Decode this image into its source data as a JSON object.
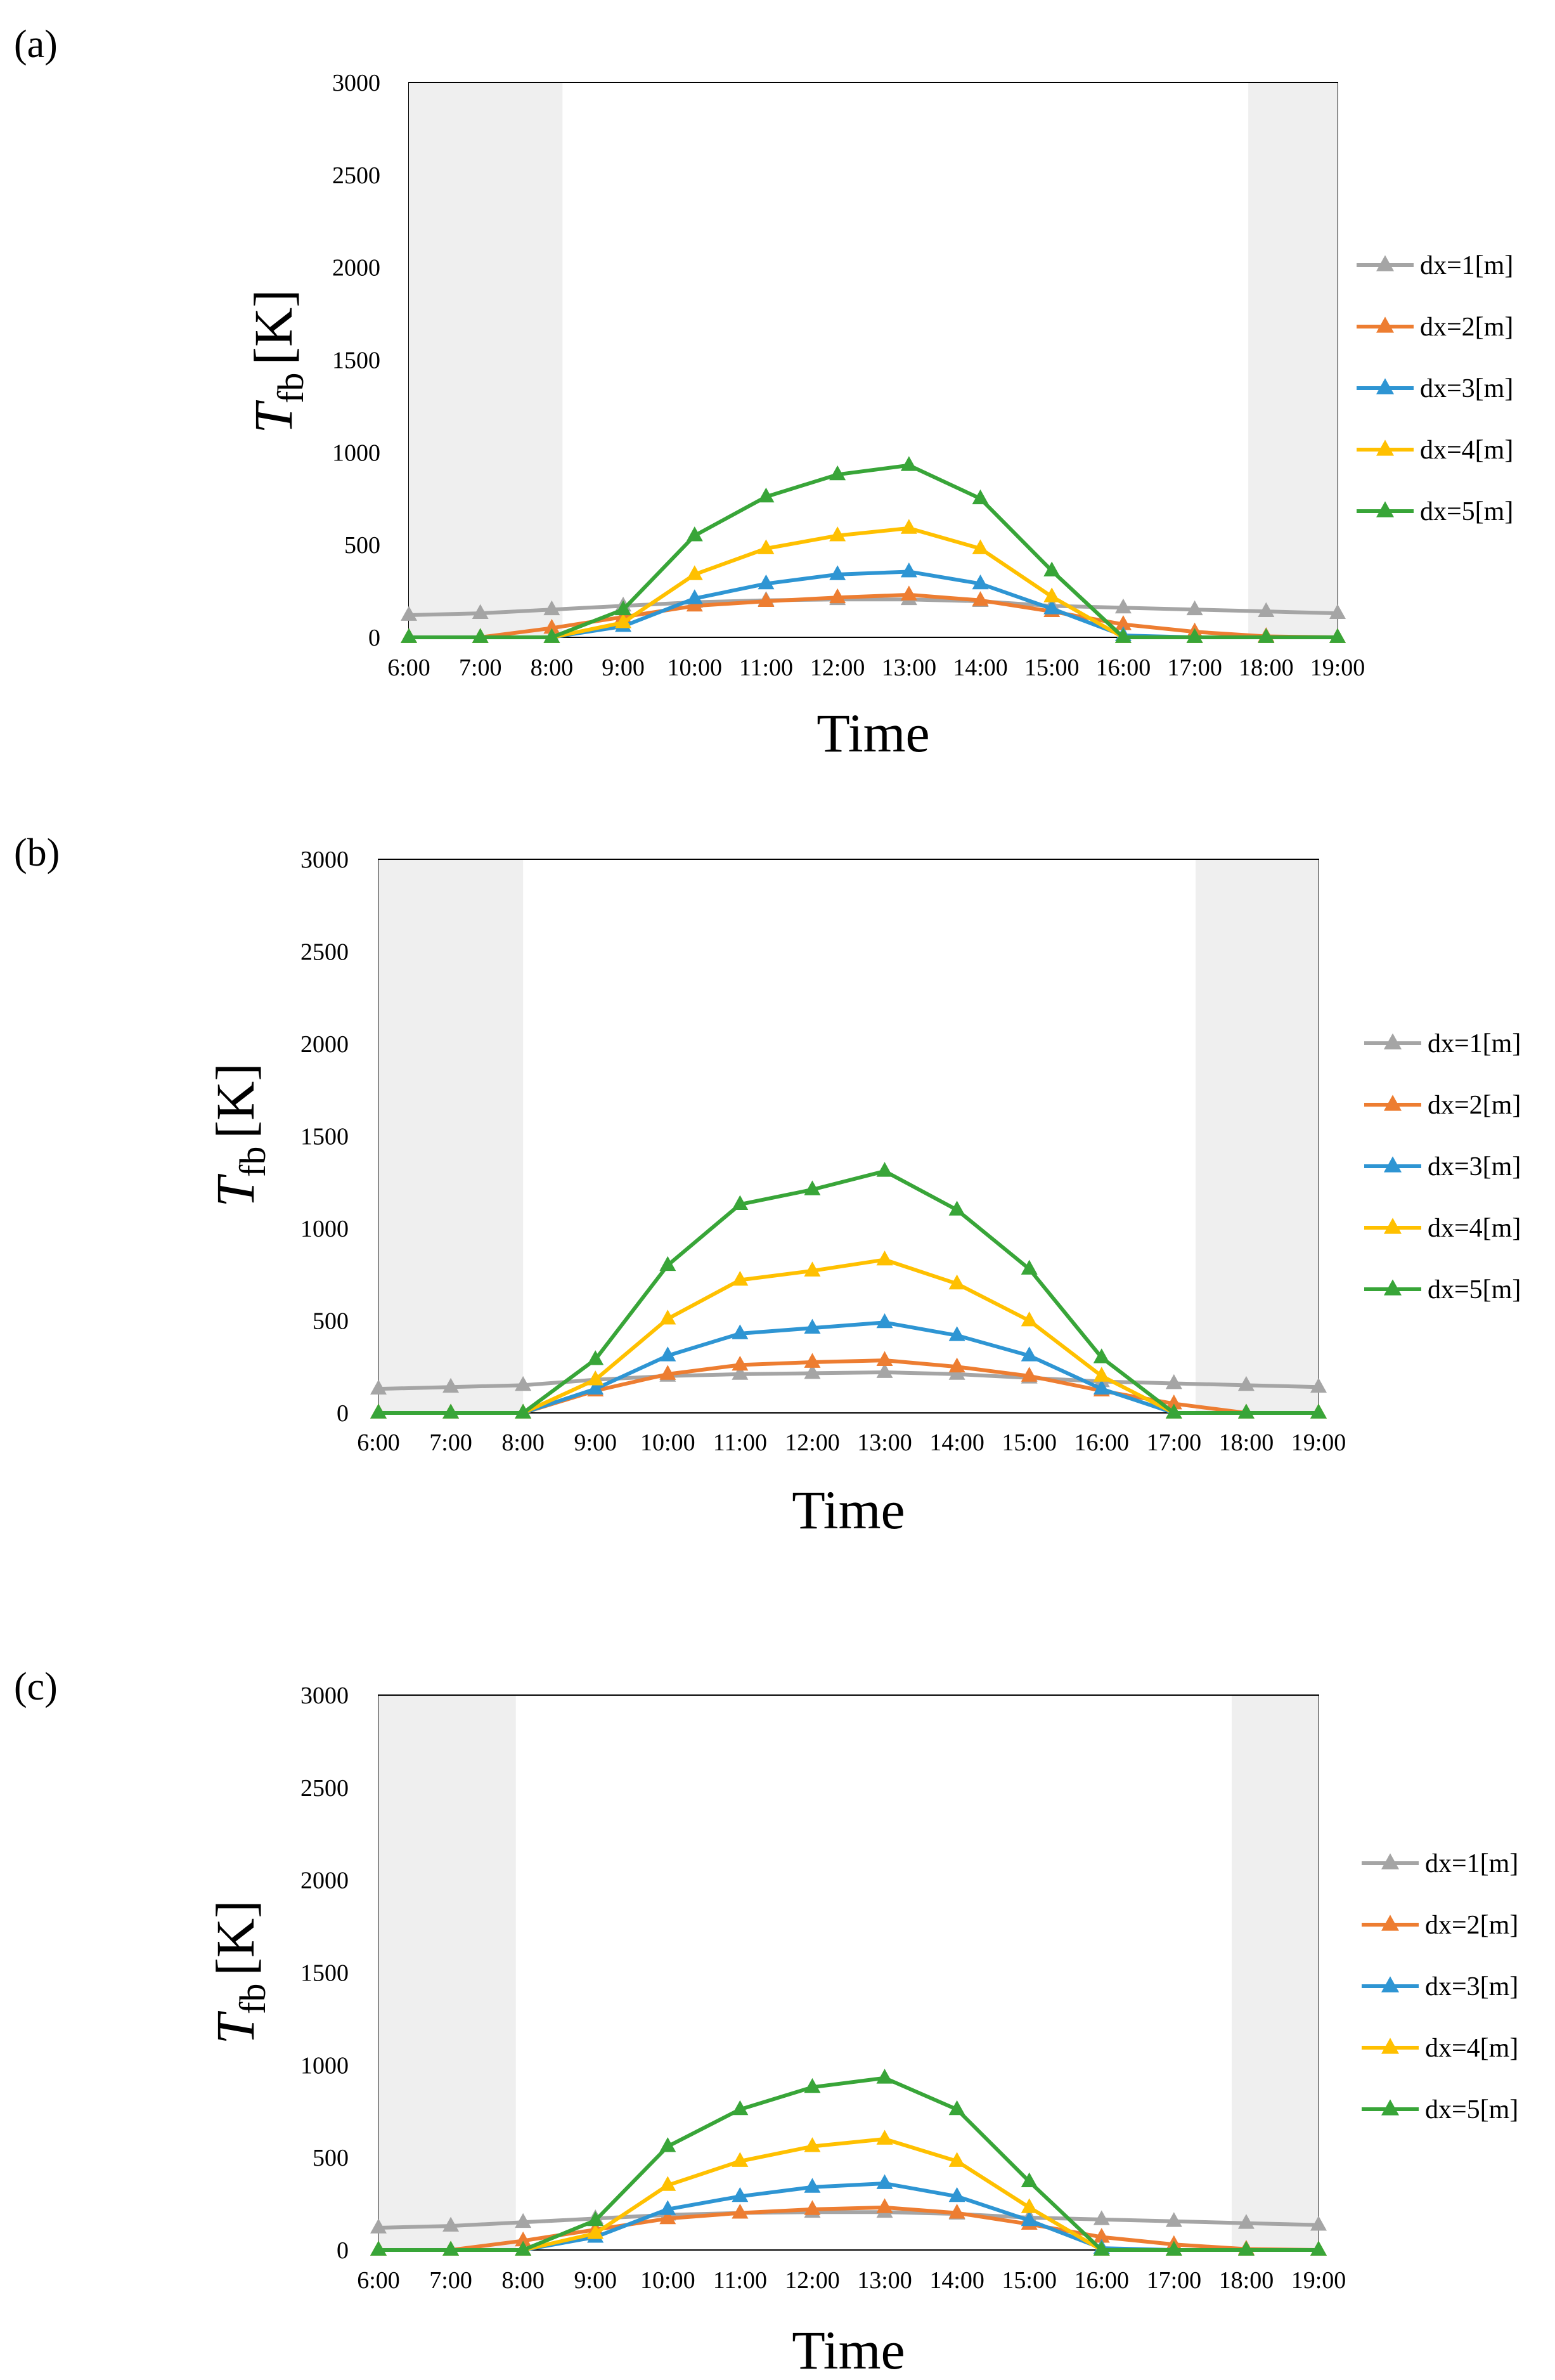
{
  "figure": {
    "panels": [
      {
        "label": "(a)",
        "chart_data": {
          "type": "line",
          "xlabel": "Time",
          "ylabel_main": "T",
          "ylabel_sub": "fb",
          "ylabel_unit": "[K]",
          "ylim": [
            0,
            3000
          ],
          "yticks": [
            "0",
            "500",
            "1000",
            "1500",
            "2000",
            "2500",
            "3000"
          ],
          "categories": [
            "6:00",
            "7:00",
            "8:00",
            "9:00",
            "10:00",
            "11:00",
            "12:00",
            "13:00",
            "14:00",
            "15:00",
            "16:00",
            "17:00",
            "18:00",
            "19:00"
          ],
          "shaded_regions": [
            [
              "6:00",
              "8:15"
            ],
            "17:40-19:00"
          ],
          "legend_position": "right",
          "grid": false,
          "series": [
            {
              "name": "dx=1[m]",
              "color": "#a5a5a5",
              "values": [
                120,
                130,
                150,
                170,
                190,
                200,
                205,
                205,
                195,
                170,
                160,
                150,
                140,
                130
              ]
            },
            {
              "name": "dx=2[m]",
              "color": "#ed7d31",
              "values": [
                0,
                0,
                50,
                110,
                170,
                195,
                215,
                230,
                200,
                140,
                70,
                30,
                5,
                0
              ]
            },
            {
              "name": "dx=3[m]",
              "color": "#2e95d3",
              "values": [
                0,
                0,
                0,
                60,
                210,
                290,
                340,
                355,
                290,
                155,
                10,
                0,
                0,
                0
              ]
            },
            {
              "name": "dx=4[m]",
              "color": "#ffc000",
              "values": [
                0,
                0,
                0,
                80,
                340,
                480,
                550,
                590,
                480,
                220,
                0,
                0,
                0,
                0
              ]
            },
            {
              "name": "dx=5[m]",
              "color": "#38a538",
              "values": [
                0,
                0,
                0,
                150,
                550,
                760,
                880,
                930,
                750,
                360,
                0,
                0,
                0,
                0
              ]
            }
          ]
        }
      },
      {
        "label": "(b)",
        "chart_data": {
          "type": "line",
          "xlabel": "Time",
          "ylabel_main": "T",
          "ylabel_sub": "fb",
          "ylabel_unit": "[K]",
          "ylim": [
            0,
            3000
          ],
          "yticks": [
            "0",
            "500",
            "1000",
            "1500",
            "2000",
            "2500",
            "3000"
          ],
          "categories": [
            "6:00",
            "7:00",
            "8:00",
            "9:00",
            "10:00",
            "11:00",
            "12:00",
            "13:00",
            "14:00",
            "15:00",
            "16:00",
            "17:00",
            "18:00",
            "19:00"
          ],
          "legend_position": "right",
          "grid": false,
          "series": [
            {
              "name": "dx=1[m]",
              "color": "#a5a5a5",
              "values": [
                130,
                140,
                150,
                180,
                200,
                210,
                215,
                220,
                210,
                190,
                170,
                160,
                150,
                140
              ]
            },
            {
              "name": "dx=2[m]",
              "color": "#ed7d31",
              "values": [
                0,
                0,
                0,
                120,
                210,
                260,
                275,
                285,
                250,
                200,
                120,
                50,
                0,
                0
              ]
            },
            {
              "name": "dx=3[m]",
              "color": "#2e95d3",
              "values": [
                0,
                0,
                0,
                130,
                310,
                430,
                460,
                490,
                420,
                310,
                130,
                0,
                0,
                0
              ]
            },
            {
              "name": "dx=4[m]",
              "color": "#ffc000",
              "values": [
                0,
                0,
                0,
                180,
                510,
                720,
                770,
                830,
                700,
                500,
                200,
                0,
                0,
                0
              ]
            },
            {
              "name": "dx=5[m]",
              "color": "#38a538",
              "values": [
                0,
                0,
                0,
                290,
                800,
                1130,
                1210,
                1310,
                1100,
                780,
                300,
                0,
                0,
                0
              ]
            }
          ]
        }
      },
      {
        "label": "(c)",
        "chart_data": {
          "type": "line",
          "xlabel": "Time",
          "ylabel_main": "T",
          "ylabel_sub": "fb",
          "ylabel_unit": "[K]",
          "ylim": [
            0,
            3000
          ],
          "yticks": [
            "0",
            "500",
            "1000",
            "1500",
            "2000",
            "2500",
            "3000"
          ],
          "categories": [
            "6:00",
            "7:00",
            "8:00",
            "9:00",
            "10:00",
            "11:00",
            "12:00",
            "13:00",
            "14:00",
            "15:00",
            "16:00",
            "17:00",
            "18:00",
            "19:00"
          ],
          "legend_position": "right",
          "grid": false,
          "series": [
            {
              "name": "dx=1[m]",
              "color": "#a5a5a5",
              "values": [
                120,
                130,
                150,
                170,
                190,
                200,
                205,
                205,
                195,
                175,
                165,
                155,
                145,
                135
              ]
            },
            {
              "name": "dx=2[m]",
              "color": "#ed7d31",
              "values": [
                0,
                0,
                50,
                110,
                170,
                200,
                220,
                230,
                200,
                140,
                70,
                30,
                5,
                0
              ]
            },
            {
              "name": "dx=3[m]",
              "color": "#2e95d3",
              "values": [
                0,
                0,
                0,
                70,
                220,
                290,
                340,
                360,
                290,
                160,
                10,
                0,
                0,
                0
              ]
            },
            {
              "name": "dx=4[m]",
              "color": "#ffc000",
              "values": [
                0,
                0,
                0,
                90,
                350,
                480,
                560,
                600,
                480,
                230,
                0,
                0,
                0,
                0
              ]
            },
            {
              "name": "dx=5[m]",
              "color": "#38a538",
              "values": [
                0,
                0,
                0,
                160,
                560,
                760,
                880,
                930,
                760,
                370,
                0,
                0,
                0,
                0
              ]
            }
          ]
        }
      }
    ]
  }
}
